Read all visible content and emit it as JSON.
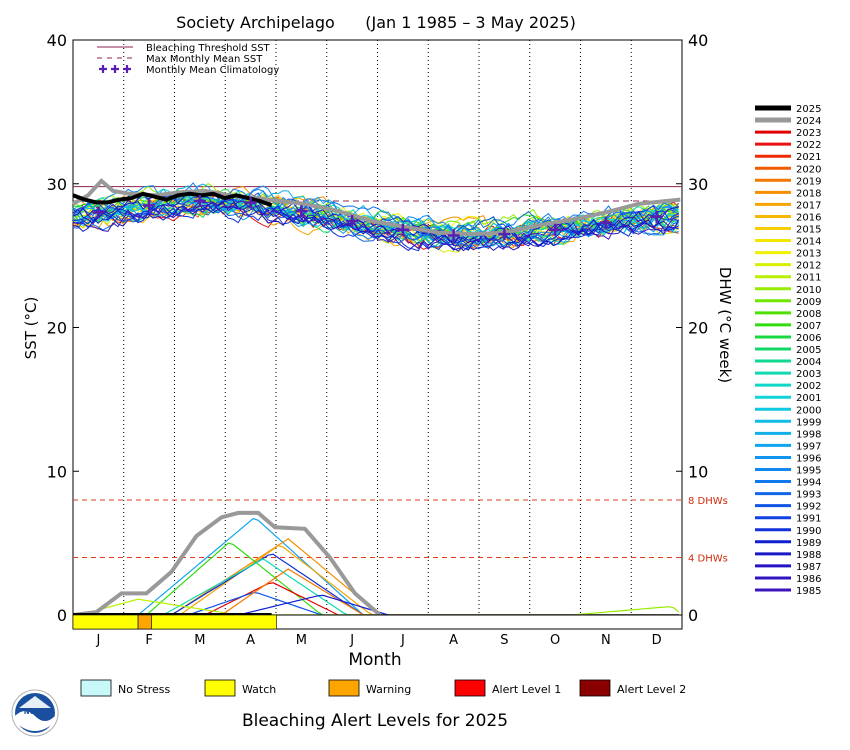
{
  "chart_data": {
    "type": "line",
    "title": "Society Archipelago      (Jan 1 1985 – 3 May 2025)",
    "xlabel": "Month",
    "ylabel_left": "SST (°C)",
    "ylabel_right": "DHW (°C week)",
    "ylim": [
      0,
      40
    ],
    "yticks": [
      0,
      10,
      20,
      30,
      40
    ],
    "months": [
      "J",
      "F",
      "M",
      "A",
      "M",
      "J",
      "J",
      "A",
      "S",
      "O",
      "N",
      "D"
    ],
    "grid": "vertical dotted month lines",
    "bleaching_threshold_sst": 29.8,
    "max_monthly_mean_sst": 28.8,
    "dhw_reference_lines": [
      {
        "value": 8,
        "label": "8 DHWs"
      },
      {
        "value": 4,
        "label": "4 DHWs"
      }
    ],
    "reference_legend": [
      {
        "label": "Bleaching Threshold SST",
        "style": "solid",
        "color": "#8b2252"
      },
      {
        "label": "Max Monthly Mean SST",
        "style": "dashed",
        "color": "#8b2252"
      },
      {
        "label": "Monthly Mean Climatology",
        "style": "cross",
        "color": "#5a1fb0"
      }
    ],
    "climatology": [
      {
        "month": 1,
        "sst": 28.0
      },
      {
        "month": 2,
        "sst": 28.5
      },
      {
        "month": 3,
        "sst": 28.8
      },
      {
        "month": 4,
        "sst": 28.7
      },
      {
        "month": 5,
        "sst": 28.1
      },
      {
        "month": 6,
        "sst": 27.4
      },
      {
        "month": 7,
        "sst": 26.8
      },
      {
        "month": 8,
        "sst": 26.4
      },
      {
        "month": 9,
        "sst": 26.5
      },
      {
        "month": 10,
        "sst": 26.8
      },
      {
        "month": 11,
        "sst": 27.3
      },
      {
        "month": 12,
        "sst": 27.7
      }
    ],
    "sst_2025": [
      {
        "day": 1,
        "sst": 29.2
      },
      {
        "day": 8,
        "sst": 28.9
      },
      {
        "day": 15,
        "sst": 28.7
      },
      {
        "day": 22,
        "sst": 28.7
      },
      {
        "day": 29,
        "sst": 28.9
      },
      {
        "day": 36,
        "sst": 29.0
      },
      {
        "day": 43,
        "sst": 29.3
      },
      {
        "day": 50,
        "sst": 29.1
      },
      {
        "day": 57,
        "sst": 28.9
      },
      {
        "day": 64,
        "sst": 29.2
      },
      {
        "day": 71,
        "sst": 29.3
      },
      {
        "day": 78,
        "sst": 29.2
      },
      {
        "day": 85,
        "sst": 29.3
      },
      {
        "day": 92,
        "sst": 29.0
      },
      {
        "day": 99,
        "sst": 29.2
      },
      {
        "day": 106,
        "sst": 29.0
      },
      {
        "day": 113,
        "sst": 28.8
      },
      {
        "day": 120,
        "sst": 28.5
      }
    ],
    "sst_2024": [
      {
        "day": 1,
        "sst": 28.6
      },
      {
        "day": 10,
        "sst": 29.2
      },
      {
        "day": 18,
        "sst": 30.2
      },
      {
        "day": 25,
        "sst": 29.5
      },
      {
        "day": 35,
        "sst": 29.3
      },
      {
        "day": 50,
        "sst": 29.2
      },
      {
        "day": 65,
        "sst": 29.4
      },
      {
        "day": 80,
        "sst": 29.5
      },
      {
        "day": 95,
        "sst": 29.2
      },
      {
        "day": 110,
        "sst": 29.0
      },
      {
        "day": 125,
        "sst": 28.8
      },
      {
        "day": 140,
        "sst": 28.6
      },
      {
        "day": 160,
        "sst": 28.1
      },
      {
        "day": 180,
        "sst": 27.4
      },
      {
        "day": 200,
        "sst": 27.0
      },
      {
        "day": 220,
        "sst": 26.6
      },
      {
        "day": 240,
        "sst": 26.5
      },
      {
        "day": 260,
        "sst": 26.6
      },
      {
        "day": 280,
        "sst": 27.1
      },
      {
        "day": 300,
        "sst": 27.5
      },
      {
        "day": 320,
        "sst": 28.0
      },
      {
        "day": 340,
        "sst": 28.6
      },
      {
        "day": 365,
        "sst": 28.9
      }
    ],
    "dhw_2024": [
      {
        "day": 1,
        "dhw": 0.0
      },
      {
        "day": 15,
        "dhw": 0.2
      },
      {
        "day": 30,
        "dhw": 1.5
      },
      {
        "day": 45,
        "dhw": 1.5
      },
      {
        "day": 60,
        "dhw": 3.0
      },
      {
        "day": 75,
        "dhw": 5.5
      },
      {
        "day": 90,
        "dhw": 6.8
      },
      {
        "day": 100,
        "dhw": 7.1
      },
      {
        "day": 112,
        "dhw": 7.1
      },
      {
        "day": 122,
        "dhw": 6.1
      },
      {
        "day": 140,
        "dhw": 6.0
      },
      {
        "day": 155,
        "dhw": 4.0
      },
      {
        "day": 170,
        "dhw": 1.5
      },
      {
        "day": 185,
        "dhw": 0.0
      }
    ],
    "dhw_2025": [
      {
        "day": 1,
        "dhw": 0.0
      },
      {
        "day": 120,
        "dhw": 0.0
      }
    ],
    "alert_bar_2025": [
      {
        "from_day": 1,
        "to_day": 40,
        "level": "Watch"
      },
      {
        "from_day": 40,
        "to_day": 48,
        "level": "Warning"
      },
      {
        "from_day": 48,
        "to_day": 123,
        "level": "Watch"
      }
    ],
    "years_legend": [
      "2025",
      "2024",
      "2023",
      "2022",
      "2021",
      "2020",
      "2019",
      "2018",
      "2017",
      "2016",
      "2015",
      "2014",
      "2013",
      "2012",
      "2011",
      "2010",
      "2009",
      "2008",
      "2007",
      "2006",
      "2005",
      "2004",
      "2003",
      "2002",
      "2001",
      "2000",
      "1999",
      "1998",
      "1997",
      "1996",
      "1995",
      "1994",
      "1993",
      "1992",
      "1991",
      "1990",
      "1989",
      "1988",
      "1987",
      "1986",
      "1985"
    ],
    "year_colors": [
      "#000000",
      "#999999",
      "#e00000",
      "#e81010",
      "#ee2a00",
      "#f25a00",
      "#f47800",
      "#f58e00",
      "#f5a400",
      "#f6b800",
      "#f5cf00",
      "#f5e600",
      "#f0f000",
      "#d6f000",
      "#b8f000",
      "#96ec00",
      "#70e600",
      "#4ee000",
      "#2edc10",
      "#18d840",
      "#10d868",
      "#10d890",
      "#10d8b0",
      "#10d8c8",
      "#10d4d8",
      "#10c8e0",
      "#10bce6",
      "#10b0ea",
      "#10a4ee",
      "#1096f0",
      "#1088f0",
      "#1078ee",
      "#1066ea",
      "#1054e6",
      "#1040e2",
      "#1030dc",
      "#1020d0",
      "#1818c8",
      "#2414c4",
      "#3014c0",
      "#3c14bc"
    ]
  },
  "alert_legend": {
    "items": [
      {
        "label": "No Stress",
        "color": "#c8f8f8"
      },
      {
        "label": "Watch",
        "color": "#ffff00"
      },
      {
        "label": "Warning",
        "color": "#ffa500"
      },
      {
        "label": "Alert Level 1",
        "color": "#ff0000"
      },
      {
        "label": "Alert Level 2",
        "color": "#8b0000"
      }
    ],
    "caption": "Bleaching Alert Levels for 2025"
  },
  "logo": {
    "text": "NOAA"
  }
}
